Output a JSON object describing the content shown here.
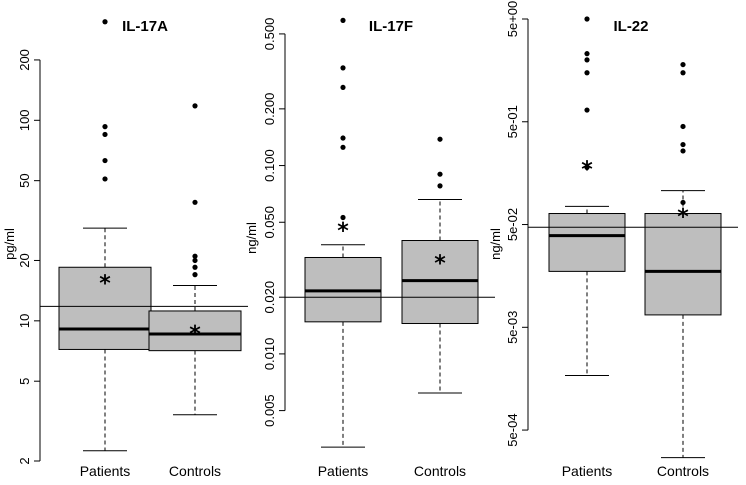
{
  "chart_data": [
    {
      "type": "box",
      "title": "IL-17A",
      "ylabel": "pg/ml",
      "scale": "log",
      "ylim": [
        2,
        320
      ],
      "yticks": [
        2,
        5,
        10,
        20,
        50,
        100,
        200
      ],
      "ytick_labels": [
        "2",
        "5",
        "10",
        "20",
        "50",
        "100",
        "200"
      ],
      "reference_line": 11.8,
      "categories": [
        "Patients",
        "Controls"
      ],
      "boxes": [
        {
          "name": "Patients",
          "min": 2.25,
          "q1": 7.2,
          "median": 9.1,
          "q3": 18.5,
          "max": 29,
          "mean": 15.7,
          "outliers": [
            51,
            63,
            85,
            93,
            310
          ]
        },
        {
          "name": "Controls",
          "min": 3.4,
          "q1": 7.1,
          "median": 8.6,
          "q3": 11.2,
          "max": 15,
          "mean": 8.8,
          "outliers": [
            17,
            18.5,
            20,
            21,
            39,
            118
          ]
        }
      ]
    },
    {
      "type": "box",
      "title": "IL-17F",
      "ylabel": "ng/ml",
      "scale": "log",
      "ylim": [
        0.0027,
        0.6
      ],
      "yticks": [
        0.005,
        0.01,
        0.02,
        0.05,
        0.1,
        0.2,
        0.5
      ],
      "ytick_labels": [
        "0.005",
        "0.010",
        "0.020",
        "0.050",
        "0.100",
        "0.200",
        "0.500"
      ],
      "reference_line": 0.02,
      "categories": [
        "Patients",
        "Controls"
      ],
      "boxes": [
        {
          "name": "Patients",
          "min": 0.0032,
          "q1": 0.0148,
          "median": 0.0216,
          "q3": 0.0325,
          "max": 0.038,
          "mean": 0.046,
          "outliers": [
            0.053,
            0.125,
            0.14,
            0.26,
            0.33,
            0.59
          ]
        },
        {
          "name": "Controls",
          "min": 0.0062,
          "q1": 0.0145,
          "median": 0.0245,
          "q3": 0.04,
          "max": 0.066,
          "mean": 0.031,
          "outliers": [
            0.078,
            0.09,
            0.138
          ]
        }
      ]
    },
    {
      "type": "box",
      "title": "IL-22",
      "ylabel": "ng/ml",
      "scale": "log",
      "ylim": [
        0.00025,
        5
      ],
      "yticks": [
        0.0005,
        0.005,
        0.05,
        0.5,
        5
      ],
      "ytick_labels": [
        "5e-04",
        "5e-03",
        "5e-02",
        "5e-01",
        "5e+00"
      ],
      "reference_line": 0.047,
      "categories": [
        "Patients",
        "Controls"
      ],
      "boxes": [
        {
          "name": "Patients",
          "min": 0.0017,
          "q1": 0.0175,
          "median": 0.039,
          "q3": 0.064,
          "max": 0.075,
          "mean": 0.18,
          "outliers": [
            0.18,
            0.65,
            1.5,
            2.0,
            2.3,
            5.0
          ]
        },
        {
          "name": "Controls",
          "min": 0.00027,
          "q1": 0.0066,
          "median": 0.0175,
          "q3": 0.064,
          "max": 0.107,
          "mean": 0.062,
          "outliers": [
            0.082,
            0.26,
            0.3,
            0.45,
            1.5,
            1.8
          ]
        }
      ]
    }
  ]
}
